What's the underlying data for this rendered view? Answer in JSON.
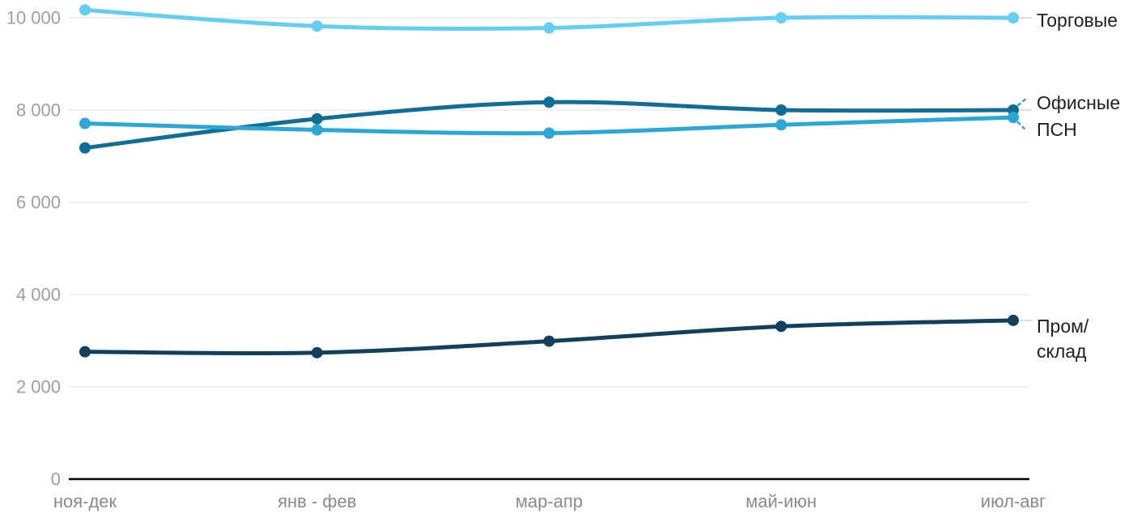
{
  "chart_data": {
    "type": "line",
    "title": "",
    "xlabel": "",
    "ylabel": "",
    "categories": [
      "ноя-дек",
      "янв - фев",
      "мар-апр",
      "май-июн",
      "июл-авг"
    ],
    "series": [
      {
        "name": "Торговые",
        "color": "#63cef4",
        "values": [
          10170,
          9820,
          9780,
          10000,
          10000
        ]
      },
      {
        "name": "Офисные",
        "color": "#0e6e97",
        "values": [
          7180,
          7810,
          8170,
          8000,
          8000
        ]
      },
      {
        "name": "ПСН",
        "color": "#29a8d8",
        "values": [
          7710,
          7570,
          7500,
          7680,
          7840
        ]
      },
      {
        "name": "Пром/склад",
        "color": "#113f5e",
        "values": [
          2760,
          2740,
          2990,
          3310,
          3440
        ],
        "label_lines": [
          "Пром/",
          "склад"
        ]
      }
    ],
    "y_ticks": [
      0,
      2000,
      4000,
      6000,
      8000,
      10000
    ],
    "y_tick_labels": [
      "0",
      "2 000",
      "4 000",
      "6 000",
      "8 000",
      "10 000"
    ],
    "ylim": [
      0,
      10420
    ],
    "grid": true,
    "smooth_curves": true,
    "legend_position": "labels-right-of-line-ends"
  },
  "colors": {
    "background": "#ffffff",
    "gridline": "#e6e6e6",
    "axis_line": "#000000",
    "y_tick_label": "#9e9e9e",
    "x_tick_label": "#8a8a8a",
    "series_label_text": "#1f1f1f",
    "leader_connector": "#dcdcdc",
    "leader_dash": "#2aa7d4"
  }
}
